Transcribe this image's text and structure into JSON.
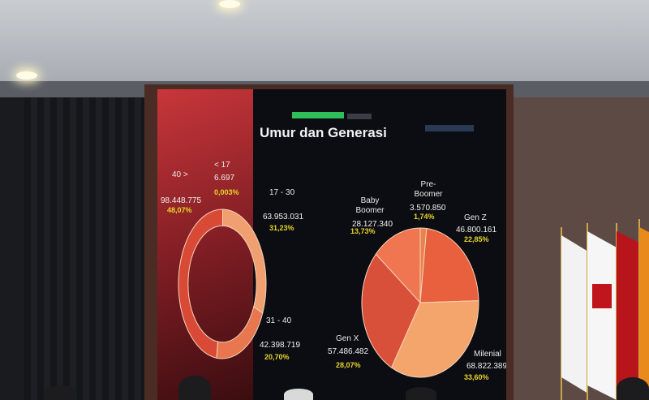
{
  "slide": {
    "title": "Umur dan Generasi"
  },
  "age_chart": {
    "segments": [
      {
        "label": "< 17",
        "value": "6.697",
        "percent": "0,003%",
        "color": "#f3b08a"
      },
      {
        "label": "17 - 30",
        "value": "63.953.031",
        "percent": "31,23%",
        "color": "#f0a070"
      },
      {
        "label": "31 - 40",
        "value": "42.398.719",
        "percent": "20,70%",
        "color": "#e8764e"
      },
      {
        "label": "40 >",
        "value": "98.448.775",
        "percent": "48,07%",
        "color": "#d94a36"
      }
    ]
  },
  "generation_chart": {
    "segments": [
      {
        "label": "Pre-Boomer",
        "value": "3.570.850",
        "percent": "1,74%",
        "color": "#e6834e"
      },
      {
        "label": "Gen Z",
        "value": "46.800.161",
        "percent": "22,85%",
        "color": "#e8603e"
      },
      {
        "label": "Milenial",
        "value": "68.822.389",
        "percent": "33,60%",
        "color": "#f4a56c"
      },
      {
        "label": "Gen X",
        "value": "57.486.482",
        "percent": "28,07%",
        "color": "#d8503a"
      },
      {
        "label": "Baby Boomer",
        "value": "28.127.340",
        "percent": "13,73%",
        "color": "#ef7650"
      }
    ]
  },
  "chart_data": [
    {
      "type": "pie",
      "categories": [
        "< 17",
        "17 - 30",
        "31 - 40",
        "40 >"
      ],
      "values": [
        0.003,
        31.23,
        20.7,
        48.07
      ]
    },
    {
      "type": "pie",
      "categories": [
        "Pre-Boomer",
        "Gen Z",
        "Milenial",
        "Gen X",
        "Baby Boomer"
      ],
      "values": [
        1.74,
        22.85,
        33.6,
        28.07,
        13.73
      ]
    }
  ]
}
